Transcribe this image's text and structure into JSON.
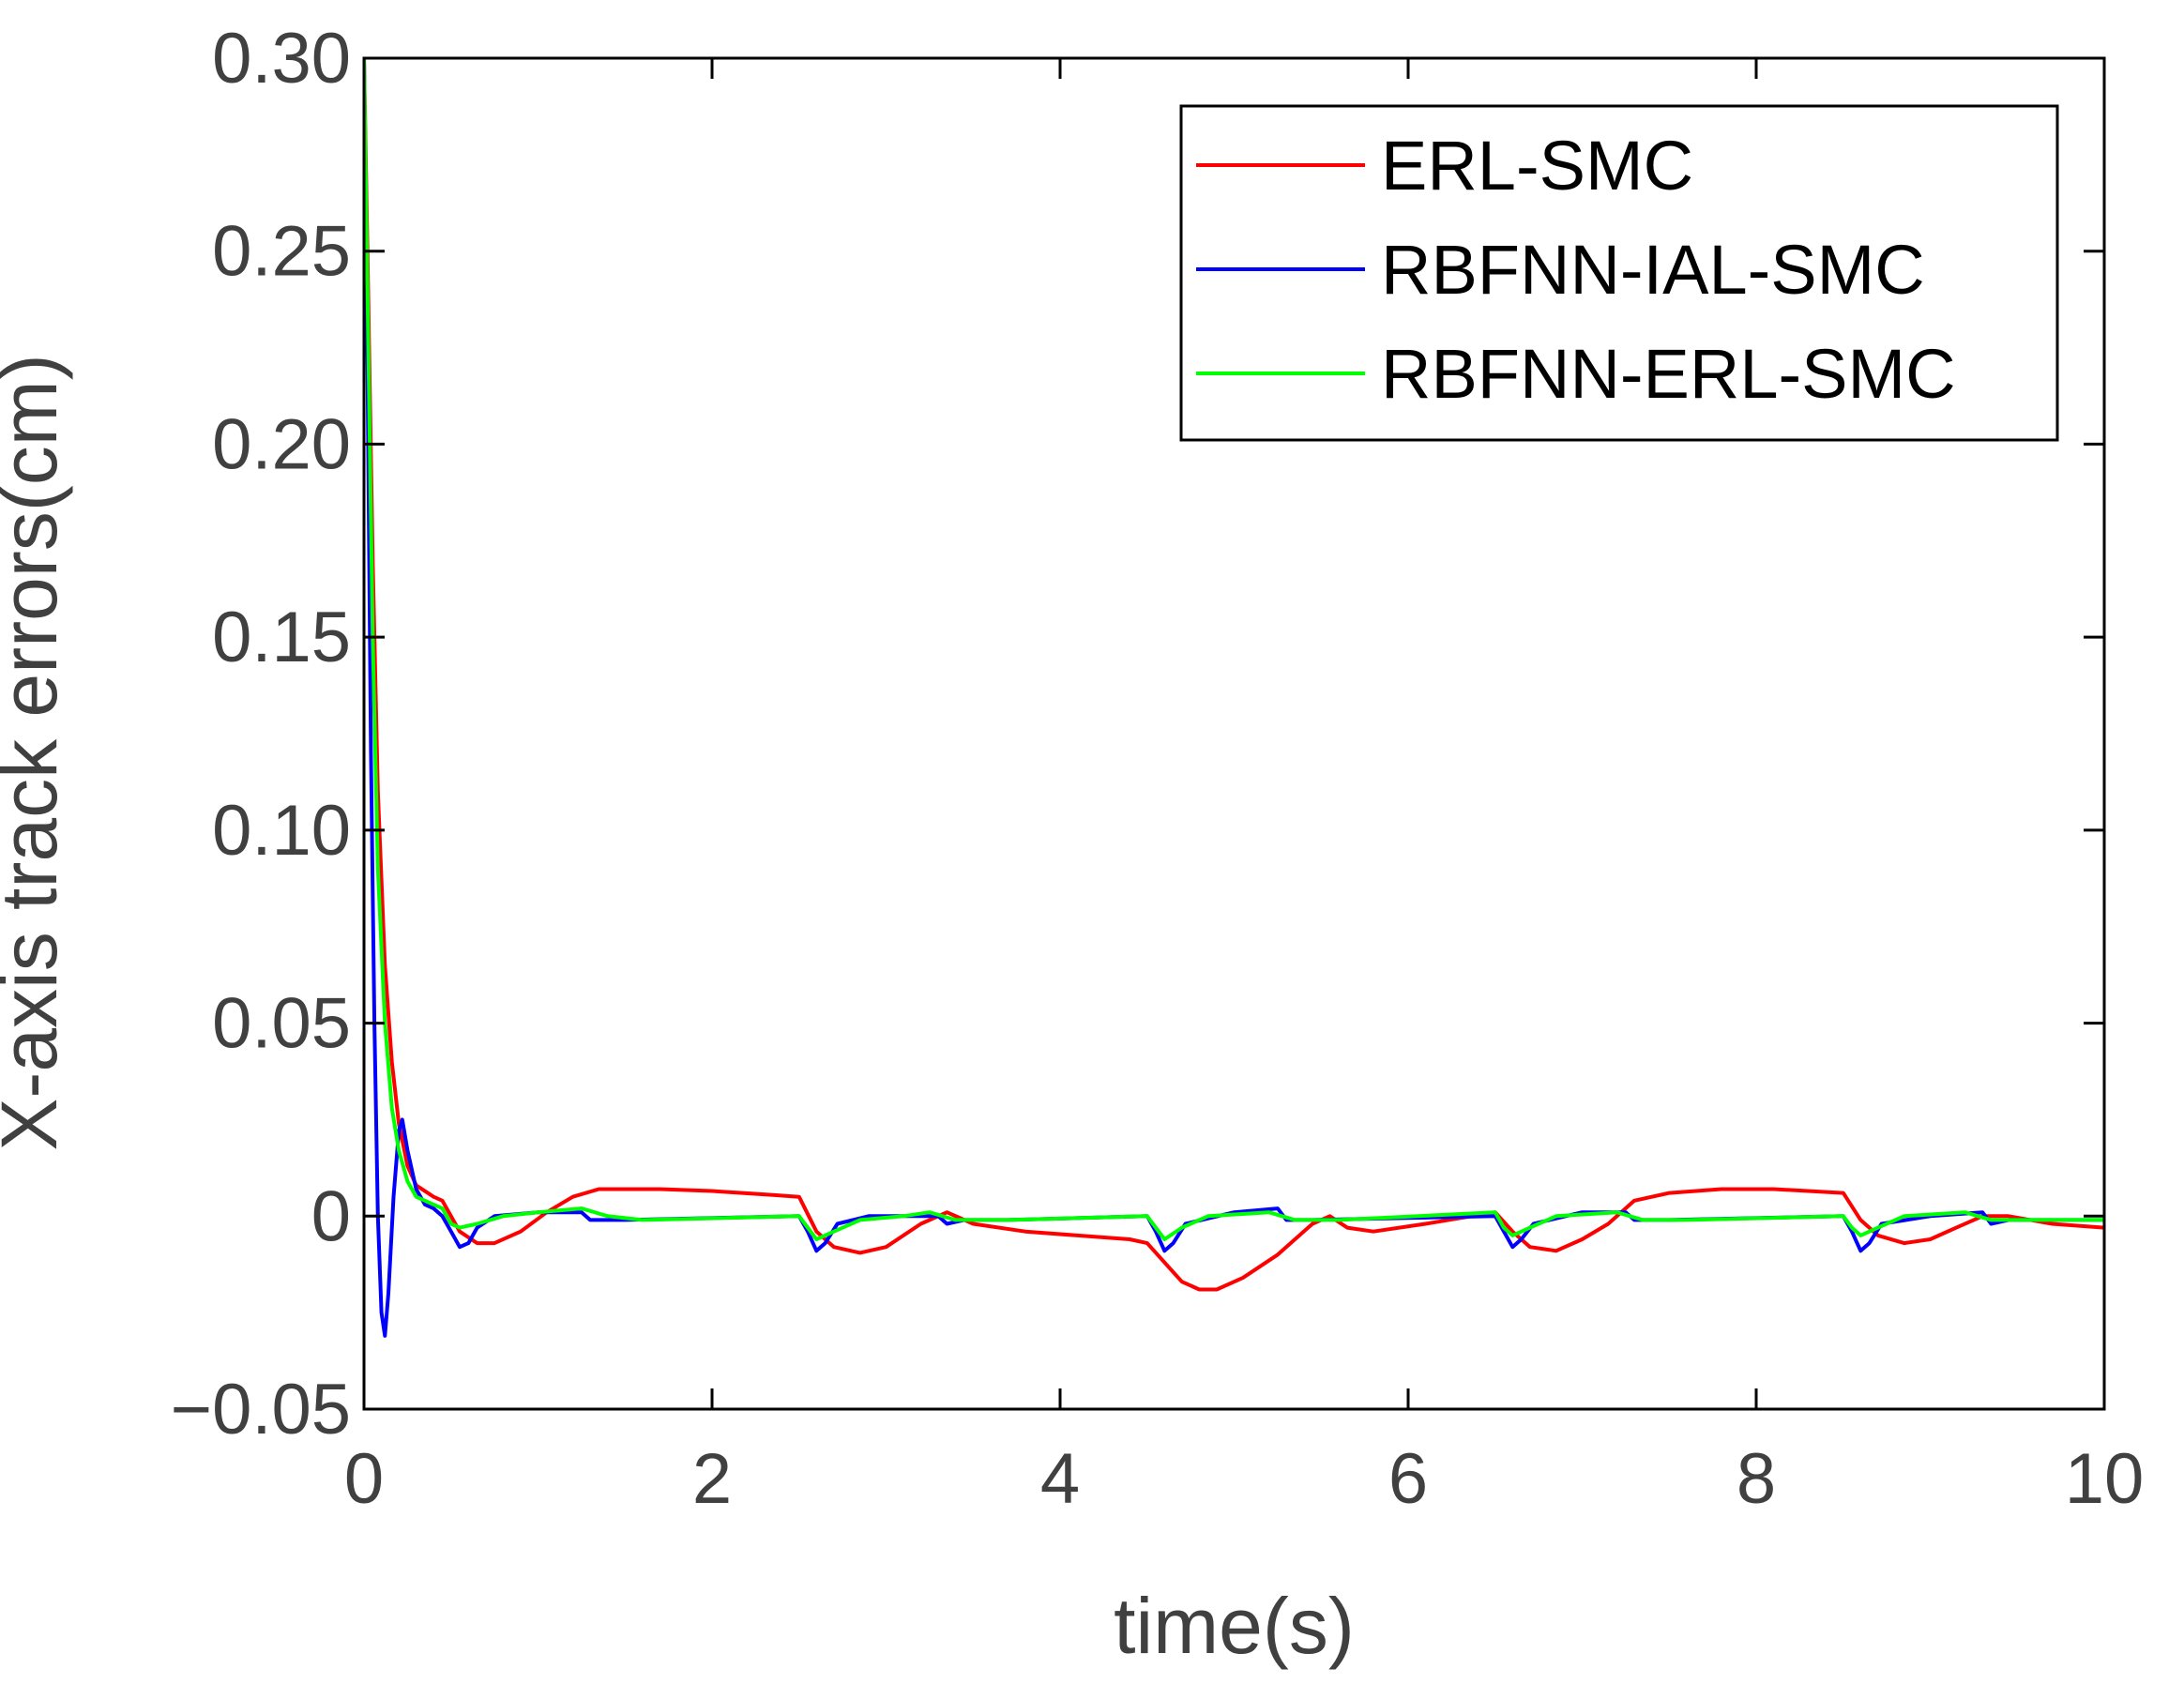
{
  "chart_data": {
    "type": "line",
    "title": "",
    "xlabel": "time(s)",
    "ylabel": "X-axis track errors(cm)",
    "xlim": [
      0,
      10
    ],
    "ylim": [
      -0.05,
      0.3
    ],
    "xticks": [
      0,
      2,
      4,
      6,
      8,
      10
    ],
    "xtick_labels": [
      "0",
      "2",
      "4",
      "6",
      "8",
      "10"
    ],
    "yticks": [
      -0.05,
      0,
      0.05,
      0.1,
      0.15,
      0.2,
      0.25,
      0.3
    ],
    "ytick_labels": [
      "−0.05",
      "0",
      "0.05",
      "0.10",
      "0.15",
      "0.20",
      "0.25",
      "0.30"
    ],
    "grid": false,
    "legend_position": "top-right",
    "series": [
      {
        "name": "ERL-SMC",
        "color": "#ff0000",
        "points": [
          [
            0,
            0.3
          ],
          [
            0.02,
            0.25
          ],
          [
            0.05,
            0.17
          ],
          [
            0.08,
            0.11
          ],
          [
            0.12,
            0.065
          ],
          [
            0.16,
            0.04
          ],
          [
            0.2,
            0.024
          ],
          [
            0.25,
            0.013
          ],
          [
            0.3,
            0.008
          ],
          [
            0.4,
            0.005
          ],
          [
            0.45,
            0.004
          ],
          [
            0.55,
            -0.004
          ],
          [
            0.65,
            -0.007
          ],
          [
            0.75,
            -0.007
          ],
          [
            0.9,
            -0.004
          ],
          [
            1.05,
            0.001
          ],
          [
            1.2,
            0.005
          ],
          [
            1.35,
            0.007
          ],
          [
            1.5,
            0.007
          ],
          [
            1.7,
            0.007
          ],
          [
            2.0,
            0.0065
          ],
          [
            2.35,
            0.0055
          ],
          [
            2.5,
            0.005
          ],
          [
            2.6,
            -0.004
          ],
          [
            2.7,
            -0.008
          ],
          [
            2.85,
            -0.0095
          ],
          [
            3.0,
            -0.008
          ],
          [
            3.2,
            -0.002
          ],
          [
            3.35,
            0.001
          ],
          [
            3.5,
            -0.002
          ],
          [
            3.8,
            -0.004
          ],
          [
            4.1,
            -0.005
          ],
          [
            4.4,
            -0.006
          ],
          [
            4.5,
            -0.007
          ],
          [
            4.6,
            -0.012
          ],
          [
            4.7,
            -0.017
          ],
          [
            4.8,
            -0.019
          ],
          [
            4.9,
            -0.019
          ],
          [
            5.05,
            -0.016
          ],
          [
            5.25,
            -0.01
          ],
          [
            5.45,
            -0.002
          ],
          [
            5.55,
            0.0
          ],
          [
            5.65,
            -0.003
          ],
          [
            5.8,
            -0.004
          ],
          [
            6.1,
            -0.002
          ],
          [
            6.5,
            0.001
          ],
          [
            6.6,
            -0.004
          ],
          [
            6.7,
            -0.008
          ],
          [
            6.85,
            -0.009
          ],
          [
            7.0,
            -0.006
          ],
          [
            7.15,
            -0.002
          ],
          [
            7.3,
            0.004
          ],
          [
            7.5,
            0.006
          ],
          [
            7.8,
            0.007
          ],
          [
            8.1,
            0.007
          ],
          [
            8.5,
            0.006
          ],
          [
            8.6,
            -0.001
          ],
          [
            8.7,
            -0.005
          ],
          [
            8.85,
            -0.007
          ],
          [
            9.0,
            -0.006
          ],
          [
            9.15,
            -0.003
          ],
          [
            9.3,
            0.0
          ],
          [
            9.45,
            0.0
          ],
          [
            9.7,
            -0.002
          ],
          [
            10.0,
            -0.003
          ]
        ]
      },
      {
        "name": "RBFNN-IAL-SMC",
        "color": "#0000ff",
        "points": [
          [
            0,
            0.3
          ],
          [
            0.02,
            0.22
          ],
          [
            0.04,
            0.12
          ],
          [
            0.06,
            0.05
          ],
          [
            0.08,
            0.0
          ],
          [
            0.1,
            -0.025
          ],
          [
            0.12,
            -0.031
          ],
          [
            0.14,
            -0.02
          ],
          [
            0.17,
            0.005
          ],
          [
            0.2,
            0.022
          ],
          [
            0.22,
            0.025
          ],
          [
            0.25,
            0.017
          ],
          [
            0.3,
            0.007
          ],
          [
            0.35,
            0.003
          ],
          [
            0.4,
            0.002
          ],
          [
            0.45,
            0.0
          ],
          [
            0.5,
            -0.004
          ],
          [
            0.55,
            -0.008
          ],
          [
            0.6,
            -0.007
          ],
          [
            0.65,
            -0.003
          ],
          [
            0.75,
            0.0
          ],
          [
            1.0,
            0.001
          ],
          [
            1.25,
            0.001
          ],
          [
            1.3,
            -0.001
          ],
          [
            1.5,
            -0.001
          ],
          [
            2.5,
            0.0
          ],
          [
            2.55,
            -0.004
          ],
          [
            2.6,
            -0.009
          ],
          [
            2.65,
            -0.007
          ],
          [
            2.72,
            -0.002
          ],
          [
            2.9,
            0.0
          ],
          [
            3.3,
            0.0
          ],
          [
            3.35,
            -0.002
          ],
          [
            3.45,
            -0.001
          ],
          [
            3.7,
            -0.001
          ],
          [
            4.5,
            0.0
          ],
          [
            4.55,
            -0.004
          ],
          [
            4.6,
            -0.009
          ],
          [
            4.65,
            -0.007
          ],
          [
            4.72,
            -0.002
          ],
          [
            5.0,
            0.001
          ],
          [
            5.25,
            0.002
          ],
          [
            5.3,
            -0.001
          ],
          [
            5.45,
            -0.001
          ],
          [
            6.5,
            0.0
          ],
          [
            6.55,
            -0.004
          ],
          [
            6.6,
            -0.008
          ],
          [
            6.65,
            -0.006
          ],
          [
            6.72,
            -0.002
          ],
          [
            7.0,
            0.001
          ],
          [
            7.25,
            0.001
          ],
          [
            7.3,
            -0.001
          ],
          [
            7.5,
            -0.001
          ],
          [
            8.5,
            0.0
          ],
          [
            8.55,
            -0.004
          ],
          [
            8.6,
            -0.009
          ],
          [
            8.65,
            -0.007
          ],
          [
            8.72,
            -0.002
          ],
          [
            9.0,
            0.0
          ],
          [
            9.3,
            0.001
          ],
          [
            9.35,
            -0.002
          ],
          [
            9.45,
            -0.001
          ],
          [
            10.0,
            -0.001
          ]
        ]
      },
      {
        "name": "RBFNN-ERL-SMC",
        "color": "#00ff00",
        "points": [
          [
            0,
            0.3
          ],
          [
            0.02,
            0.24
          ],
          [
            0.05,
            0.15
          ],
          [
            0.08,
            0.09
          ],
          [
            0.12,
            0.05
          ],
          [
            0.16,
            0.028
          ],
          [
            0.2,
            0.017
          ],
          [
            0.25,
            0.009
          ],
          [
            0.3,
            0.005
          ],
          [
            0.4,
            0.003
          ],
          [
            0.45,
            0.002
          ],
          [
            0.5,
            -0.002
          ],
          [
            0.55,
            -0.003
          ],
          [
            0.65,
            -0.002
          ],
          [
            0.8,
            0.0
          ],
          [
            1.0,
            0.001
          ],
          [
            1.25,
            0.002
          ],
          [
            1.4,
            0.0
          ],
          [
            1.6,
            -0.001
          ],
          [
            2.5,
            0.0
          ],
          [
            2.55,
            -0.003
          ],
          [
            2.6,
            -0.006
          ],
          [
            2.7,
            -0.004
          ],
          [
            2.85,
            -0.001
          ],
          [
            3.1,
            0.0
          ],
          [
            3.25,
            0.001
          ],
          [
            3.4,
            -0.001
          ],
          [
            3.7,
            -0.001
          ],
          [
            4.5,
            0.0
          ],
          [
            4.55,
            -0.003
          ],
          [
            4.6,
            -0.006
          ],
          [
            4.7,
            -0.003
          ],
          [
            4.85,
            0.0
          ],
          [
            5.2,
            0.001
          ],
          [
            5.35,
            -0.001
          ],
          [
            5.6,
            -0.001
          ],
          [
            6.5,
            0.001
          ],
          [
            6.55,
            -0.003
          ],
          [
            6.6,
            -0.005
          ],
          [
            6.7,
            -0.003
          ],
          [
            6.85,
            0.0
          ],
          [
            7.2,
            0.001
          ],
          [
            7.35,
            -0.001
          ],
          [
            7.6,
            -0.001
          ],
          [
            8.5,
            0.0
          ],
          [
            8.55,
            -0.003
          ],
          [
            8.6,
            -0.005
          ],
          [
            8.7,
            -0.003
          ],
          [
            8.85,
            0.0
          ],
          [
            9.2,
            0.001
          ],
          [
            9.35,
            -0.001
          ],
          [
            10.0,
            -0.001
          ]
        ]
      }
    ]
  }
}
